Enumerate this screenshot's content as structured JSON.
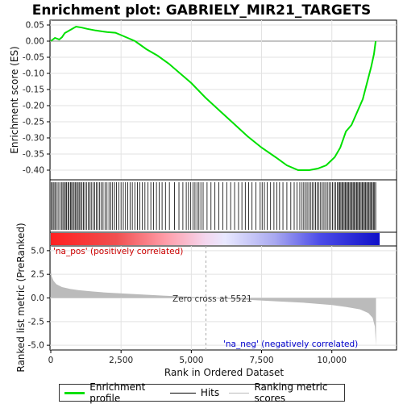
{
  "chart_data": {
    "type": "line",
    "title": "Enrichment plot: GABRIELY_MIR21_TARGETS",
    "xlabel": "Rank in Ordered Dataset",
    "ylabel_top": "Enrichment score (ES)",
    "ylabel_bottom": "Ranked list metric (PreRanked)",
    "xlim": [
      0,
      11700
    ],
    "x_ticks": [
      0,
      2500,
      5000,
      7500,
      10000
    ],
    "x_tick_labels": [
      "0",
      "2,500",
      "5,000",
      "7,500",
      "10,000"
    ],
    "es_ylim": [
      -0.43,
      0.065
    ],
    "es_ticks": [
      0.05,
      0.0,
      -0.05,
      -0.1,
      -0.15,
      -0.2,
      -0.25,
      -0.3,
      -0.35,
      -0.4
    ],
    "es_tick_labels": [
      "0.05",
      "0.00",
      "-0.05",
      "-0.10",
      "-0.15",
      "-0.20",
      "-0.25",
      "-0.30",
      "-0.35",
      "-0.40"
    ],
    "metric_ylim": [
      -5.5,
      5.5
    ],
    "metric_ticks": [
      5.0,
      2.5,
      0.0,
      -2.5,
      -5.0
    ],
    "metric_tick_labels": [
      "5.0",
      "2.5",
      "0.0",
      "-2.5",
      "-5.0"
    ],
    "series": [
      {
        "name": "Enrichment profile",
        "color": "#00e000",
        "x": [
          0,
          150,
          300,
          400,
          500,
          700,
          900,
          1100,
          1300,
          1600,
          2000,
          2300,
          2600,
          3000,
          3400,
          3800,
          4200,
          4600,
          5000,
          5500,
          6000,
          6500,
          7000,
          7500,
          8000,
          8400,
          8800,
          9200,
          9500,
          9800,
          10100,
          10300,
          10500,
          10700,
          10900,
          11100,
          11250,
          11400,
          11500,
          11560
        ],
        "y": [
          0.0,
          0.01,
          0.005,
          0.012,
          0.025,
          0.035,
          0.045,
          0.042,
          0.038,
          0.033,
          0.028,
          0.026,
          0.015,
          0.0,
          -0.025,
          -0.045,
          -0.07,
          -0.1,
          -0.13,
          -0.175,
          -0.215,
          -0.255,
          -0.295,
          -0.33,
          -0.36,
          -0.385,
          -0.4,
          -0.4,
          -0.395,
          -0.385,
          -0.36,
          -0.33,
          -0.28,
          -0.26,
          -0.22,
          -0.18,
          -0.13,
          -0.08,
          -0.04,
          0.0
        ]
      }
    ],
    "hits_x": [
      20,
      60,
      110,
      150,
      200,
      260,
      320,
      380,
      430,
      470,
      520,
      560,
      610,
      650,
      700,
      740,
      790,
      830,
      880,
      920,
      970,
      1010,
      1060,
      1110,
      1160,
      1210,
      1270,
      1330,
      1390,
      1440,
      1500,
      1560,
      1620,
      1680,
      1740,
      1800,
      1860,
      1930,
      2000,
      2070,
      2140,
      2200,
      2270,
      2340,
      2420,
      2500,
      2580,
      2660,
      2740,
      2820,
      2900,
      2990,
      3080,
      3170,
      3260,
      3350,
      3460,
      3560,
      3660,
      3760,
      3860,
      3960,
      4080,
      4220,
      4400,
      4560,
      4700,
      4820,
      4900,
      4980,
      5060,
      5130,
      5200,
      5270,
      5340,
      5420,
      5560,
      5700,
      5840,
      5980,
      6120,
      6260,
      6400,
      6540,
      6680,
      6800,
      6920,
      7040,
      7160,
      7300,
      7450,
      7520,
      7600,
      7700,
      7820,
      7940,
      8040,
      8140,
      8260,
      8400,
      8540,
      8660,
      8760,
      8860,
      8940,
      9000,
      9060,
      9120,
      9180,
      9240,
      9300,
      9360,
      9420,
      9480,
      9540,
      9600,
      9660,
      9720,
      9780,
      9840,
      9900,
      9960,
      10020,
      10080,
      10140,
      10200,
      10240,
      10280,
      10320,
      10360,
      10400,
      10440,
      10480,
      10520,
      10560,
      10600,
      10640,
      10680,
      10720,
      10760,
      10800,
      10840,
      10880,
      10920,
      10960,
      11000,
      11040,
      11080,
      11120,
      11160,
      11200,
      11240,
      11280,
      11320,
      11360,
      11400,
      11440,
      11480,
      11520,
      11560
    ],
    "metric_x": [
      0,
      30,
      100,
      200,
      400,
      700,
      1000,
      1500,
      2000,
      3000,
      4000,
      5000,
      5521,
      6000,
      7000,
      8000,
      9000,
      10000,
      10500,
      11000,
      11300,
      11450,
      11530,
      11570
    ],
    "metric_y": [
      3.0,
      2.3,
      1.8,
      1.45,
      1.15,
      0.95,
      0.82,
      0.68,
      0.56,
      0.4,
      0.25,
      0.12,
      0.0,
      -0.08,
      -0.2,
      -0.35,
      -0.5,
      -0.75,
      -0.95,
      -1.2,
      -1.6,
      -2.1,
      -3.0,
      -5.1
    ],
    "zero_cross": 5521,
    "zero_cross_label": "Zero cross at 5521",
    "pos_label": "'na_pos' (positively correlated)",
    "neg_label": "'na_neg' (negatively correlated)",
    "colors": {
      "pos_label": "#cc0000",
      "neg_label": "#0000cc",
      "es_line": "#00e000",
      "metric_fill": "#bbbbbb",
      "hit_line": "#000000",
      "bar_pos": "#ff0000",
      "bar_neg": "#0000ff"
    }
  },
  "legend": {
    "items": [
      {
        "label": "Enrichment profile",
        "color": "#00e000"
      },
      {
        "label": "Hits",
        "color": "#000000"
      },
      {
        "label": "Ranking metric scores",
        "color": "#bbbbbb"
      }
    ]
  }
}
